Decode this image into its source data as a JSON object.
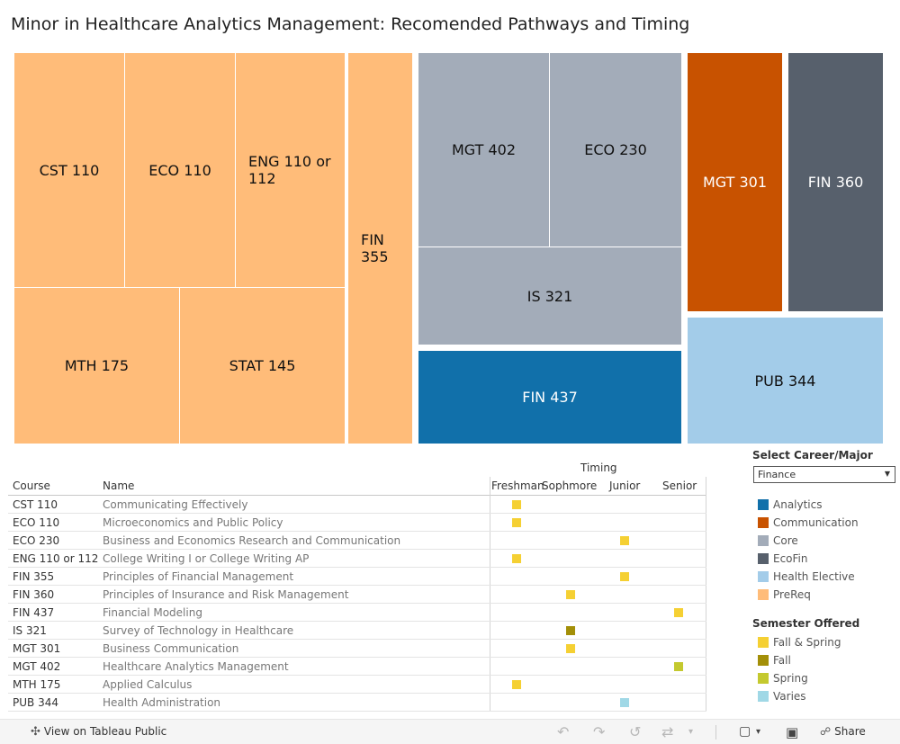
{
  "title": "Minor in Healthcare Analytics Management: Recomended Pathways and Timing",
  "colors": {
    "Analytics": "#1170aa",
    "Communication": "#c85200",
    "Core": "#a3acb9",
    "EcoFin": "#57606c",
    "Health Elective": "#a3cce9",
    "PreReq": "#ffbc79",
    "Fall & Spring": "#f5d033",
    "Fall": "#a38f08",
    "Spring": "#c4c92f",
    "Varies": "#a0d8e6"
  },
  "treemap": [
    {
      "label": "CST 110",
      "category": "PreReq"
    },
    {
      "label": "ECO 110",
      "category": "PreReq"
    },
    {
      "label": "ENG 110 or 112",
      "category": "PreReq"
    },
    {
      "label": "MTH 175",
      "category": "PreReq"
    },
    {
      "label": "STAT 145",
      "category": "PreReq"
    },
    {
      "label": "FIN 355",
      "category": "PreReq"
    },
    {
      "label": "MGT 402",
      "category": "Core"
    },
    {
      "label": "ECO 230",
      "category": "Core"
    },
    {
      "label": "IS 321",
      "category": "Core"
    },
    {
      "label": "FIN 437",
      "category": "Analytics"
    },
    {
      "label": "MGT 301",
      "category": "Communication"
    },
    {
      "label": "FIN 360",
      "category": "EcoFin"
    },
    {
      "label": "PUB 344",
      "category": "Health Elective"
    }
  ],
  "table": {
    "timing_header": "Timing",
    "course_header": "Course",
    "name_header": "Name",
    "year_headers": [
      "Freshman",
      "Sophmore",
      "Junior",
      "Senior"
    ],
    "rows": [
      {
        "course": "CST 110",
        "name": "Communicating Effectively",
        "year": "Freshman",
        "semester": "Fall & Spring"
      },
      {
        "course": "ECO 110",
        "name": "Microeconomics and Public Policy",
        "year": "Freshman",
        "semester": "Fall & Spring"
      },
      {
        "course": "ECO 230",
        "name": "Business and Economics Research and Communication",
        "year": "Junior",
        "semester": "Fall & Spring"
      },
      {
        "course": "ENG 110 or 112",
        "name": "College Writing I or College Writing AP",
        "year": "Freshman",
        "semester": "Fall & Spring"
      },
      {
        "course": "FIN 355",
        "name": "Principles of Financial Management",
        "year": "Junior",
        "semester": "Fall & Spring"
      },
      {
        "course": "FIN 360",
        "name": "Principles of Insurance and Risk Management",
        "year": "Sophmore",
        "semester": "Fall & Spring"
      },
      {
        "course": "FIN 437",
        "name": "Financial Modeling",
        "year": "Senior",
        "semester": "Fall & Spring"
      },
      {
        "course": "IS 321",
        "name": "Survey of Technology in Healthcare",
        "year": "Sophmore",
        "semester": "Fall"
      },
      {
        "course": "MGT 301",
        "name": "Business Communication",
        "year": "Sophmore",
        "semester": "Fall & Spring"
      },
      {
        "course": "MGT 402",
        "name": "Healthcare Analytics Management",
        "year": "Senior",
        "semester": "Spring"
      },
      {
        "course": "MTH 175",
        "name": "Applied Calculus",
        "year": "Freshman",
        "semester": "Fall & Spring"
      },
      {
        "course": "PUB 344",
        "name": "Health Administration",
        "year": "Junior",
        "semester": "Varies"
      }
    ]
  },
  "filter": {
    "title": "Select Career/Major",
    "value": "Finance"
  },
  "legend_category": {
    "items": [
      "Analytics",
      "Communication",
      "Core",
      "EcoFin",
      "Health Elective",
      "PreReq"
    ]
  },
  "legend_semester": {
    "title": "Semester Offered",
    "items": [
      "Fall & Spring",
      "Fall",
      "Spring",
      "Varies"
    ]
  },
  "footer": {
    "view_label": "View on Tableau Public",
    "share_label": "Share"
  }
}
